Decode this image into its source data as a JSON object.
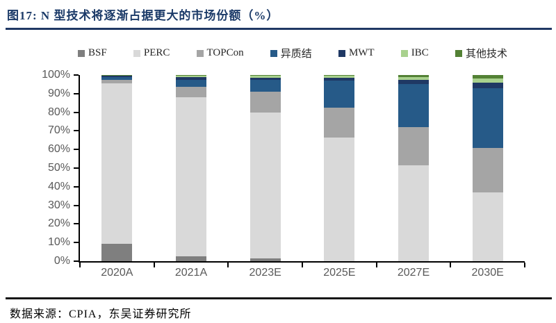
{
  "figure": {
    "title": "图17:  N 型技术将逐渐占据更大的市场份额（%）",
    "source": "数据来源：CPIA，东吴证券研究所"
  },
  "chart_data": {
    "type": "bar",
    "stacked": true,
    "percent_stacked": true,
    "title": "N 型技术将逐渐占据更大的市场份额（%）",
    "xlabel": "",
    "ylabel": "",
    "ylim": [
      0,
      100
    ],
    "grid": false,
    "legend_position": "top",
    "y_ticks": [
      "0%",
      "10%",
      "20%",
      "30%",
      "40%",
      "50%",
      "60%",
      "70%",
      "80%",
      "90%",
      "100%"
    ],
    "categories": [
      "2020A",
      "2021A",
      "2023E",
      "2025E",
      "2027E",
      "2030E"
    ],
    "series": [
      {
        "name": "BSF",
        "color": "#7F7F7F",
        "values": [
          9.5,
          2.5,
          1.5,
          0,
          0,
          0
        ]
      },
      {
        "name": "PERC",
        "color": "#D9D9D9",
        "values": [
          86,
          85.5,
          78.5,
          66.5,
          51.5,
          37
        ]
      },
      {
        "name": "TOPCon",
        "color": "#A5A5A5",
        "values": [
          2,
          5.5,
          11,
          16,
          20.5,
          24
        ]
      },
      {
        "name": "异质结",
        "color": "#265A88",
        "values": [
          1.5,
          4,
          6.5,
          14.5,
          23,
          32
        ]
      },
      {
        "name": "MWT",
        "color": "#1F3864",
        "values": [
          0.5,
          1.5,
          1,
          1.5,
          2.5,
          3
        ]
      },
      {
        "name": "IBC",
        "color": "#A9D18E",
        "values": [
          0.3,
          0.6,
          1,
          1,
          1.5,
          2
        ]
      },
      {
        "name": "其他技术",
        "color": "#538135",
        "values": [
          0.2,
          0.4,
          0.5,
          0.5,
          1,
          2
        ]
      }
    ]
  }
}
